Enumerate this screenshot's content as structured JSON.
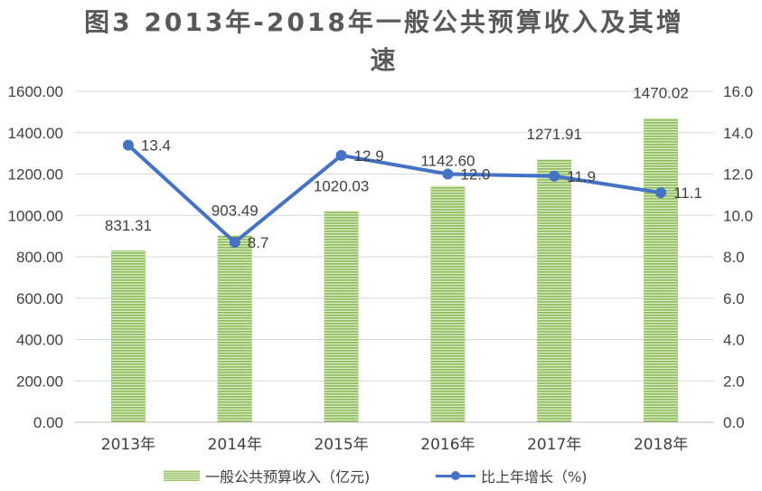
{
  "title": "图3  2013年-2018年一般公共预算收入及其增速",
  "chart_data": {
    "type": "bar",
    "categories": [
      "2013年",
      "2014年",
      "2015年",
      "2016年",
      "2017年",
      "2018年"
    ],
    "series": [
      {
        "name": "一般公共预算收入（亿元)",
        "type": "bar",
        "axis": "left",
        "values": [
          831.31,
          903.49,
          1020.03,
          1142.6,
          1271.91,
          1470.02
        ],
        "labels": [
          "831.31",
          "903.49",
          "1020.03",
          "1142.60",
          "1271.91",
          "1470.02"
        ],
        "color": "#8fbc5a"
      },
      {
        "name": "比上年增长（%)",
        "type": "line",
        "axis": "right",
        "values": [
          13.4,
          8.7,
          12.9,
          12.0,
          11.9,
          11.1
        ],
        "labels": [
          "13.4",
          "8.7",
          "12.9",
          "12.0",
          "11.9",
          "11.1"
        ],
        "color": "#4472c4"
      }
    ],
    "y_left": {
      "min": 0,
      "max": 1600,
      "step": 200,
      "ticks": [
        "0.00",
        "200.00",
        "400.00",
        "600.00",
        "800.00",
        "1000.00",
        "1200.00",
        "1400.00",
        "1600.00"
      ]
    },
    "y_right": {
      "min": 0,
      "max": 16,
      "step": 2,
      "ticks": [
        "0.0",
        "2.0",
        "4.0",
        "6.0",
        "8.0",
        "10.0",
        "12.0",
        "14.0",
        "16.0"
      ]
    },
    "grid": true,
    "legend": "bottom"
  }
}
